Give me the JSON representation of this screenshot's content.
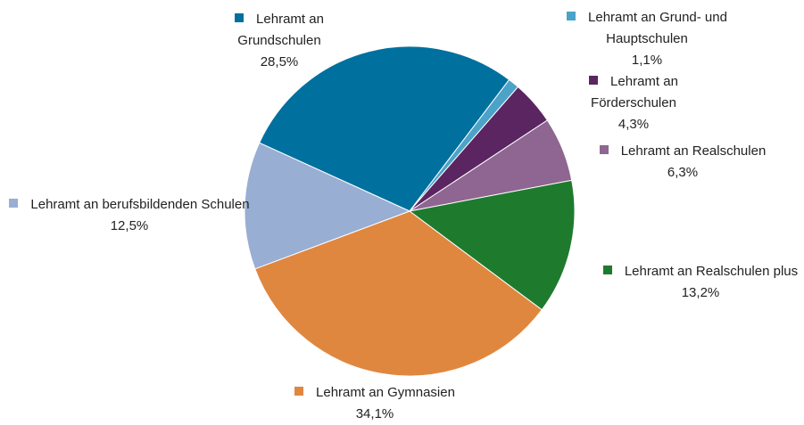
{
  "chart_data": {
    "type": "pie",
    "categories": [
      "Lehramt an Grundschulen",
      "Lehramt an Grund- und Hauptschulen",
      "Lehramt an Förderschulen",
      "Lehramt an Realschulen",
      "Lehramt an Realschulen plus",
      "Lehramt an Gymnasien",
      "Lehramt an berufsbildenden Schulen"
    ],
    "values": [
      28.5,
      1.1,
      4.3,
      6.3,
      13.2,
      34.1,
      12.5
    ],
    "value_labels": [
      "28,5%",
      "1,1%",
      "4,3%",
      "6,3%",
      "13,2%",
      "34,1%",
      "12,5%"
    ],
    "colors": [
      "#00709f",
      "#4ba3c8",
      "#5b2561",
      "#8e6691",
      "#1e7b2e",
      "#e0873f",
      "#98aed3"
    ]
  }
}
